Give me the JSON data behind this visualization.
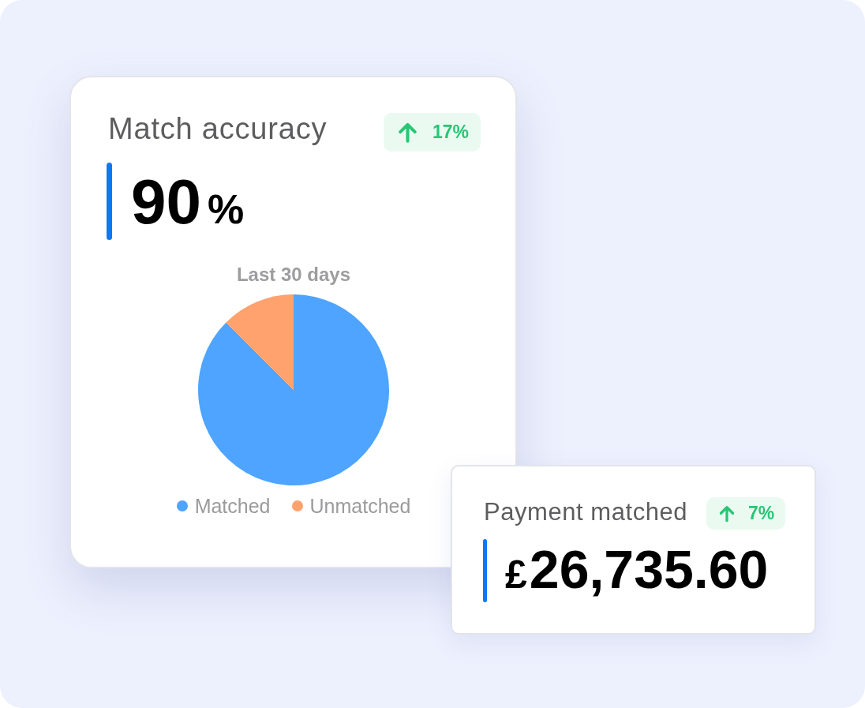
{
  "chart_data": [
    {
      "type": "other",
      "title": "Match accuracy",
      "annotations": [
        "17%",
        "90%"
      ]
    },
    {
      "type": "pie",
      "title": "Last 30 days",
      "categories": [
        "Matched",
        "Unmatched"
      ],
      "values": [
        87.5,
        12.5
      ],
      "colors": [
        "#4ea4ff",
        "#ffa26e"
      ],
      "legend": "bottom"
    },
    {
      "type": "other",
      "title": "Payment matched",
      "annotations": [
        "7%",
        "£26,735.60"
      ]
    }
  ]
}
